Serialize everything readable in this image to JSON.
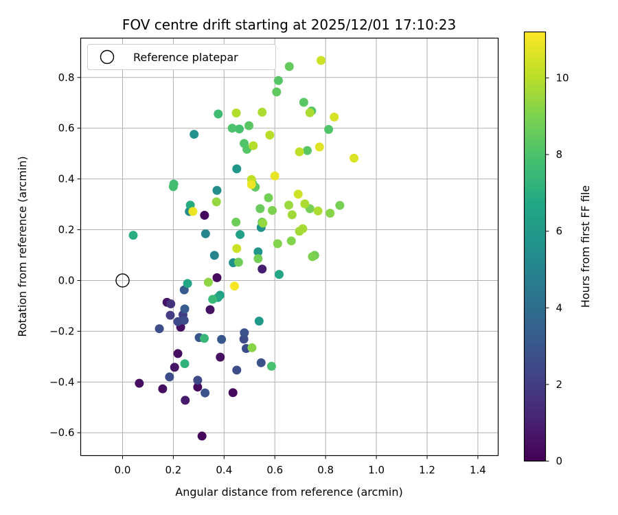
{
  "chart_data": {
    "type": "scatter",
    "title": "FOV centre drift starting at 2025/12/01 17:10:23",
    "xlabel": "Angular distance from reference (arcmin)",
    "ylabel": "Rotation from reference (arcmin)",
    "xlim": [
      -0.165,
      1.48
    ],
    "ylim": [
      -0.69,
      0.955
    ],
    "xticks": [
      0.0,
      0.2,
      0.4,
      0.6,
      0.8,
      1.0,
      1.2,
      1.4
    ],
    "xtick_labels": [
      "0.0",
      "0.2",
      "0.4",
      "0.6",
      "0.8",
      "1.0",
      "1.2",
      "1.4"
    ],
    "yticks": [
      -0.6,
      -0.4,
      -0.2,
      0.0,
      0.2,
      0.4,
      0.6,
      0.8
    ],
    "ytick_labels": [
      "−0.6",
      "−0.4",
      "−0.2",
      "0.0",
      "0.2",
      "0.4",
      "0.6",
      "0.8"
    ],
    "grid": true,
    "legend": {
      "location": "upper-left",
      "entries": [
        "Reference platepar"
      ]
    },
    "reference_point": {
      "x": 0.0,
      "y": 0.0,
      "label": "Reference platepar"
    },
    "colorbar": {
      "label": "Hours from first FF file",
      "range": [
        0,
        11.2
      ],
      "ticks": [
        0,
        2,
        4,
        6,
        8,
        10
      ],
      "tick_labels": [
        "0",
        "2",
        "4",
        "6",
        "8",
        "10"
      ],
      "colormap": "viridis"
    },
    "points": [
      {
        "x": 0.313,
        "y": -0.613,
        "h": 0.2
      },
      {
        "x": 0.296,
        "y": -0.42,
        "h": 0.3
      },
      {
        "x": 0.435,
        "y": -0.442,
        "h": 0.3
      },
      {
        "x": 0.158,
        "y": -0.427,
        "h": 0.4
      },
      {
        "x": 0.066,
        "y": -0.405,
        "h": 0.4
      },
      {
        "x": 0.247,
        "y": -0.472,
        "h": 0.8
      },
      {
        "x": 0.205,
        "y": -0.342,
        "h": 0.6
      },
      {
        "x": 0.218,
        "y": -0.288,
        "h": 0.4
      },
      {
        "x": 0.385,
        "y": -0.302,
        "h": 0.5
      },
      {
        "x": 0.229,
        "y": -0.184,
        "h": 0.5
      },
      {
        "x": 0.175,
        "y": -0.086,
        "h": 0.6
      },
      {
        "x": 0.345,
        "y": -0.115,
        "h": 0.5
      },
      {
        "x": 0.372,
        "y": 0.011,
        "h": 0.3
      },
      {
        "x": 0.55,
        "y": 0.045,
        "h": 0.9
      },
      {
        "x": 0.323,
        "y": 0.257,
        "h": 0.3
      },
      {
        "x": 0.19,
        "y": -0.092,
        "h": 1.6
      },
      {
        "x": 0.188,
        "y": -0.137,
        "h": 2.0
      },
      {
        "x": 0.238,
        "y": -0.135,
        "h": 2.0
      },
      {
        "x": 0.218,
        "y": -0.162,
        "h": 2.4
      },
      {
        "x": 0.243,
        "y": -0.157,
        "h": 2.6
      },
      {
        "x": 0.145,
        "y": -0.19,
        "h": 2.6
      },
      {
        "x": 0.296,
        "y": -0.393,
        "h": 2.4
      },
      {
        "x": 0.185,
        "y": -0.38,
        "h": 2.6
      },
      {
        "x": 0.325,
        "y": -0.443,
        "h": 2.8
      },
      {
        "x": 0.45,
        "y": -0.353,
        "h": 2.6
      },
      {
        "x": 0.546,
        "y": -0.324,
        "h": 2.8
      },
      {
        "x": 0.478,
        "y": -0.231,
        "h": 2.6
      },
      {
        "x": 0.487,
        "y": -0.268,
        "h": 2.6
      },
      {
        "x": 0.48,
        "y": -0.206,
        "h": 2.8
      },
      {
        "x": 0.39,
        "y": -0.232,
        "h": 3.0
      },
      {
        "x": 0.302,
        "y": -0.225,
        "h": 3.0
      },
      {
        "x": 0.243,
        "y": -0.037,
        "h": 3.2
      },
      {
        "x": 0.245,
        "y": -0.112,
        "h": 3.2
      },
      {
        "x": 0.362,
        "y": 0.099,
        "h": 5.0
      },
      {
        "x": 0.327,
        "y": 0.184,
        "h": 5.0
      },
      {
        "x": 0.372,
        "y": 0.355,
        "h": 5.4
      },
      {
        "x": 0.263,
        "y": 0.272,
        "h": 5.4
      },
      {
        "x": 0.282,
        "y": 0.576,
        "h": 5.6
      },
      {
        "x": 0.436,
        "y": 0.07,
        "h": 5.6
      },
      {
        "x": 0.534,
        "y": 0.113,
        "h": 5.8
      },
      {
        "x": 0.546,
        "y": 0.209,
        "h": 5.6
      },
      {
        "x": 0.538,
        "y": -0.16,
        "h": 6.0
      },
      {
        "x": 0.45,
        "y": 0.44,
        "h": 5.9
      },
      {
        "x": 0.463,
        "y": 0.181,
        "h": 6.4
      },
      {
        "x": 0.617,
        "y": 0.024,
        "h": 6.6
      },
      {
        "x": 0.256,
        "y": -0.012,
        "h": 6.6
      },
      {
        "x": 0.384,
        "y": -0.058,
        "h": 6.4
      },
      {
        "x": 0.376,
        "y": -0.067,
        "h": 6.6
      },
      {
        "x": 0.042,
        "y": 0.178,
        "h": 7.0
      },
      {
        "x": 0.267,
        "y": 0.297,
        "h": 6.9
      },
      {
        "x": 0.245,
        "y": -0.328,
        "h": 7.2
      },
      {
        "x": 0.322,
        "y": -0.228,
        "h": 7.4
      },
      {
        "x": 0.355,
        "y": -0.074,
        "h": 7.5
      },
      {
        "x": 0.202,
        "y": 0.38,
        "h": 7.7
      },
      {
        "x": 0.2,
        "y": 0.37,
        "h": 7.8
      },
      {
        "x": 0.377,
        "y": 0.656,
        "h": 7.7
      },
      {
        "x": 0.587,
        "y": -0.338,
        "h": 7.9
      },
      {
        "x": 0.46,
        "y": 0.597,
        "h": 7.9
      },
      {
        "x": 0.432,
        "y": 0.6,
        "h": 8.0
      },
      {
        "x": 0.479,
        "y": 0.54,
        "h": 8.1
      },
      {
        "x": 0.49,
        "y": 0.517,
        "h": 8.2
      },
      {
        "x": 0.498,
        "y": 0.61,
        "h": 8.3
      },
      {
        "x": 0.614,
        "y": 0.788,
        "h": 8.2
      },
      {
        "x": 0.607,
        "y": 0.743,
        "h": 8.4
      },
      {
        "x": 0.657,
        "y": 0.843,
        "h": 8.5
      },
      {
        "x": 0.714,
        "y": 0.702,
        "h": 8.3
      },
      {
        "x": 0.745,
        "y": 0.668,
        "h": 8.2
      },
      {
        "x": 0.812,
        "y": 0.595,
        "h": 8.1
      },
      {
        "x": 0.728,
        "y": 0.512,
        "h": 8.3
      },
      {
        "x": 0.523,
        "y": 0.368,
        "h": 8.4
      },
      {
        "x": 0.513,
        "y": 0.381,
        "h": 8.3
      },
      {
        "x": 0.542,
        "y": 0.283,
        "h": 8.6
      },
      {
        "x": 0.55,
        "y": 0.23,
        "h": 8.5
      },
      {
        "x": 0.447,
        "y": 0.23,
        "h": 8.7
      },
      {
        "x": 0.457,
        "y": 0.072,
        "h": 8.7
      },
      {
        "x": 0.534,
        "y": 0.086,
        "h": 8.8
      },
      {
        "x": 0.575,
        "y": 0.326,
        "h": 8.8
      },
      {
        "x": 0.59,
        "y": 0.276,
        "h": 9.0
      },
      {
        "x": 0.611,
        "y": 0.145,
        "h": 9.1
      },
      {
        "x": 0.665,
        "y": 0.156,
        "h": 9.1
      },
      {
        "x": 0.738,
        "y": 0.283,
        "h": 8.9
      },
      {
        "x": 0.757,
        "y": 0.099,
        "h": 8.7
      },
      {
        "x": 0.748,
        "y": 0.094,
        "h": 9.0
      },
      {
        "x": 0.856,
        "y": 0.296,
        "h": 8.9
      },
      {
        "x": 0.818,
        "y": 0.265,
        "h": 9.2
      },
      {
        "x": 0.338,
        "y": -0.007,
        "h": 9.3
      },
      {
        "x": 0.51,
        "y": -0.265,
        "h": 9.2
      },
      {
        "x": 0.37,
        "y": 0.31,
        "h": 9.4
      },
      {
        "x": 0.553,
        "y": 0.226,
        "h": 9.4
      },
      {
        "x": 0.655,
        "y": 0.297,
        "h": 9.5
      },
      {
        "x": 0.668,
        "y": 0.259,
        "h": 9.6
      },
      {
        "x": 0.697,
        "y": 0.194,
        "h": 9.6
      },
      {
        "x": 0.71,
        "y": 0.204,
        "h": 9.7
      },
      {
        "x": 0.718,
        "y": 0.302,
        "h": 9.8
      },
      {
        "x": 0.77,
        "y": 0.274,
        "h": 9.8
      },
      {
        "x": 0.515,
        "y": 0.531,
        "h": 9.9
      },
      {
        "x": 0.55,
        "y": 0.663,
        "h": 9.8
      },
      {
        "x": 0.448,
        "y": 0.66,
        "h": 9.9
      },
      {
        "x": 0.58,
        "y": 0.573,
        "h": 10.0
      },
      {
        "x": 0.738,
        "y": 0.661,
        "h": 9.8
      },
      {
        "x": 0.697,
        "y": 0.507,
        "h": 10.1
      },
      {
        "x": 0.508,
        "y": 0.398,
        "h": 10.1
      },
      {
        "x": 0.45,
        "y": 0.126,
        "h": 10.3
      },
      {
        "x": 0.692,
        "y": 0.34,
        "h": 10.4
      },
      {
        "x": 0.782,
        "y": 0.867,
        "h": 10.3
      },
      {
        "x": 0.834,
        "y": 0.644,
        "h": 10.5
      },
      {
        "x": 0.912,
        "y": 0.482,
        "h": 10.6
      },
      {
        "x": 0.776,
        "y": 0.526,
        "h": 10.7
      },
      {
        "x": 0.6,
        "y": 0.412,
        "h": 10.8
      },
      {
        "x": 0.508,
        "y": 0.378,
        "h": 10.9
      },
      {
        "x": 0.277,
        "y": 0.272,
        "h": 10.9
      },
      {
        "x": 0.441,
        "y": -0.022,
        "h": 11.1
      }
    ]
  }
}
